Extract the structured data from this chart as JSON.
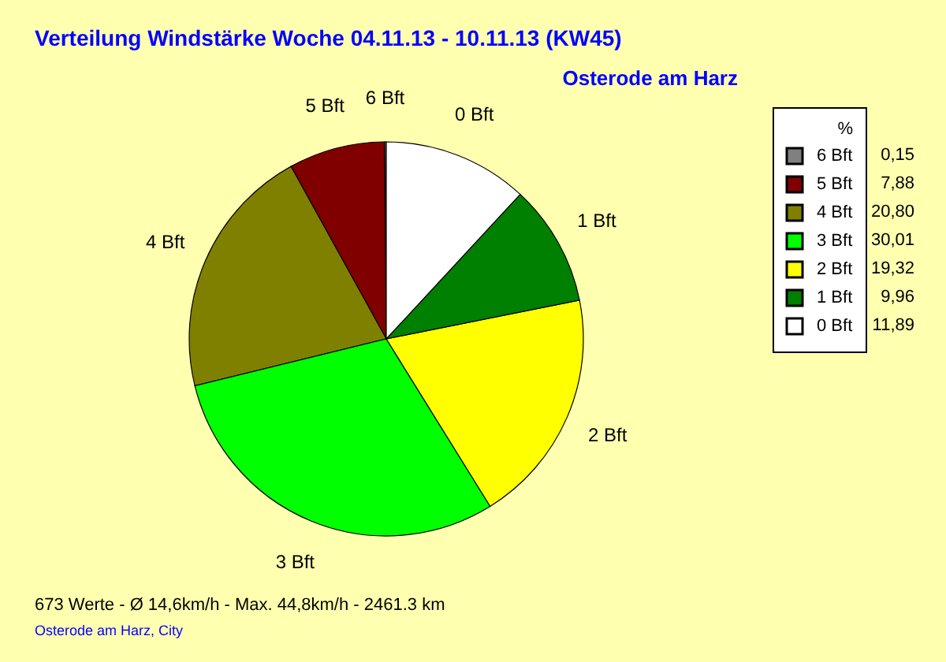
{
  "chart_data": {
    "type": "pie",
    "title": "Verteilung Windstärke  Woche 04.11.13 - 10.11.13 (KW45)",
    "subtitle": "Osterode am Harz",
    "legend_title": "%",
    "legend": "top right",
    "categories": [
      "6 Bft",
      "5 Bft",
      "4 Bft",
      "3 Bft",
      "2 Bft",
      "1 Bft",
      "0 Bft"
    ],
    "values": [
      0.15,
      7.88,
      20.8,
      30.01,
      19.32,
      9.96,
      11.89
    ],
    "value_labels": [
      "0,15",
      "7,88",
      "20,80",
      "30,01",
      "19,32",
      "9,96",
      "11,89"
    ],
    "colors": [
      "#808080",
      "#800000",
      "#808000",
      "#00ff00",
      "#ffff00",
      "#008000",
      "#ffffff"
    ],
    "annotations": [
      "673 Werte   -   Ø 14,6km/h  -  Max. 44,8km/h   -   2461.3 km",
      "Osterode am Harz, City"
    ]
  }
}
